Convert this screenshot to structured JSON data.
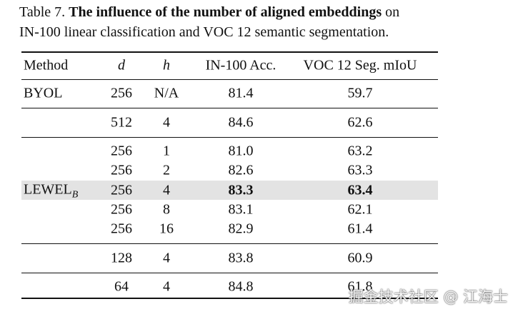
{
  "caption": {
    "label": "Table 7.",
    "bold": "The influence of the number of aligned embeddings",
    "text": "on",
    "text2": "IN-100 linear classification and VOC 12 semantic segmentation."
  },
  "table": {
    "header": [
      "Method",
      "d",
      "h",
      "IN-100 Acc.",
      "VOC 12 Seg. mIoU"
    ],
    "italic_header_columns": [
      1,
      2
    ],
    "methods": [
      {
        "name": "BYOL"
      },
      {
        "name": "LEWEL",
        "subscript": "B"
      }
    ],
    "sections": [
      [
        [
          "256",
          "N/A",
          "81.4",
          "59.7"
        ]
      ],
      [
        [
          "512",
          "4",
          "84.6",
          "62.6"
        ]
      ],
      [
        [
          "256",
          "1",
          "81.0",
          "63.2"
        ],
        [
          "256",
          "2",
          "82.6",
          "63.3"
        ],
        [
          "256",
          "4",
          "83.3",
          "63.4"
        ],
        [
          "256",
          "8",
          "83.1",
          "62.1"
        ],
        [
          "256",
          "16",
          "82.9",
          "61.4"
        ]
      ],
      [
        [
          "128",
          "4",
          "83.8",
          "60.9"
        ]
      ],
      [
        [
          "64",
          "4",
          "84.8",
          "61.8"
        ]
      ]
    ],
    "highlight": {
      "section": 2,
      "row": 2,
      "bold_columns": [
        2,
        3
      ]
    }
  },
  "watermark": "掘金技术社区 @ 江海士"
}
